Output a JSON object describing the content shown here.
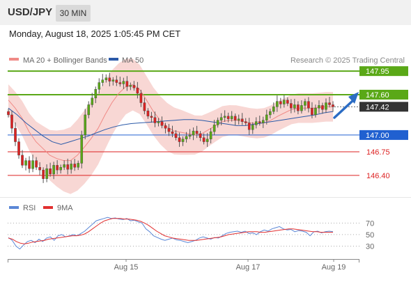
{
  "header": {
    "symbol": "USD/JPY",
    "interval": "30 MIN",
    "datetime": "Monday, August 18, 2025 1:05:45 PM CET"
  },
  "legend": {
    "ma20_label": "MA 20 + Bollinger Bands",
    "ma50_label": "MA 50",
    "ma20_color": "#f08a86",
    "ma50_color": "#2b5aa8",
    "credit": "Research © 2025 Trading Central"
  },
  "rsi_legend": {
    "rsi_label": "RSI",
    "ma9_label": "9MA",
    "rsi_color": "#5b87d6",
    "ma9_color": "#e23030"
  },
  "chart_data": [
    {
      "type": "candlestick",
      "title": "USD/JPY",
      "ylim": [
        146.15,
        148.2
      ],
      "grid": false,
      "legend_position": "top-left",
      "levels": [
        {
          "value": 147.95,
          "label": "147.95",
          "color": "#5aa817",
          "kind": "resistance"
        },
        {
          "value": 147.6,
          "label": "147.60",
          "color": "#5aa817",
          "kind": "resistance"
        },
        {
          "value": 147.42,
          "label": "147.42",
          "color": "#333333",
          "kind": "last-price"
        },
        {
          "value": 147.0,
          "label": "147.00",
          "color": "#2060d0",
          "kind": "pivot"
        },
        {
          "value": 146.75,
          "label": "146.75",
          "color": "#dd2222",
          "kind": "support"
        },
        {
          "value": 146.4,
          "label": "146.40",
          "color": "#dd2222",
          "kind": "support"
        }
      ],
      "close_series": [
        147.3,
        147.1,
        146.9,
        146.7,
        146.55,
        146.62,
        146.5,
        146.62,
        146.52,
        146.48,
        146.35,
        146.5,
        146.42,
        146.55,
        146.48,
        146.52,
        146.56,
        146.49,
        146.57,
        146.52,
        146.58,
        147.0,
        147.3,
        147.45,
        147.55,
        147.68,
        147.78,
        147.82,
        147.85,
        147.8,
        147.82,
        147.78,
        147.76,
        147.8,
        147.72,
        147.74,
        147.7,
        147.62,
        147.48,
        147.36,
        147.28,
        147.26,
        147.18,
        147.2,
        147.14,
        147.1,
        147.05,
        147.02,
        146.96,
        146.9,
        146.94,
        146.98,
        147.0,
        147.06,
        147.02,
        146.96,
        146.9,
        146.94,
        147.05,
        147.15,
        147.22,
        147.26,
        147.28,
        147.24,
        147.28,
        147.22,
        147.24,
        147.2,
        147.18,
        147.08,
        147.15,
        147.2,
        147.18,
        147.22,
        147.3,
        147.35,
        147.42,
        147.5,
        147.46,
        147.52,
        147.47,
        147.4,
        147.45,
        147.36,
        147.44,
        147.5,
        147.4,
        147.3,
        147.4,
        147.44,
        147.38,
        147.48,
        147.45,
        147.42
      ],
      "ma20": [
        147.52,
        147.4,
        147.25,
        147.05,
        146.9,
        146.8,
        146.7,
        146.65,
        146.62,
        146.62,
        146.7,
        146.82,
        146.95,
        147.1,
        147.3,
        147.48,
        147.62,
        147.72,
        147.75,
        147.68,
        147.52,
        147.35,
        147.22,
        147.12,
        147.06,
        147.04,
        147.02,
        147.0,
        147.02,
        147.08,
        147.14,
        147.2,
        147.22,
        147.22,
        147.2,
        147.18,
        147.17,
        147.18,
        147.22,
        147.28,
        147.33,
        147.38,
        147.4,
        147.4,
        147.4,
        147.41,
        147.42,
        147.42
      ],
      "ma50": [
        147.4,
        147.3,
        147.18,
        147.08,
        146.98,
        146.9,
        146.86,
        146.9,
        146.94,
        146.98,
        147.03,
        147.08,
        147.12,
        147.15,
        147.17,
        147.18,
        147.19,
        147.2,
        147.21,
        147.22,
        147.23,
        147.23,
        147.22,
        147.2,
        147.18,
        147.16,
        147.14,
        147.14,
        147.16,
        147.18,
        147.2,
        147.22,
        147.24,
        147.26,
        147.28,
        147.3,
        147.33,
        147.35
      ]
    },
    {
      "type": "line",
      "title": "RSI",
      "y_ticks": [
        70,
        50,
        30
      ],
      "ylim": [
        10,
        85
      ],
      "x_ticks": [
        "Aug 15",
        "Aug 17",
        "Aug 19"
      ],
      "series": [
        {
          "name": "RSI",
          "values": [
            45,
            40,
            30,
            25,
            32,
            38,
            40,
            36,
            42,
            38,
            44,
            46,
            40,
            48,
            50,
            46,
            48,
            50,
            48,
            52,
            56,
            62,
            68,
            74,
            76,
            78,
            80,
            78,
            79,
            77,
            76,
            78,
            74,
            75,
            72,
            70,
            60,
            55,
            48,
            45,
            42,
            40,
            42,
            44,
            41,
            40,
            38,
            36,
            38,
            40,
            44,
            46,
            44,
            42,
            45,
            44,
            48,
            52,
            54,
            55,
            56,
            54,
            56,
            52,
            53,
            50,
            55,
            58,
            56,
            60,
            62,
            64,
            60,
            58,
            59,
            55,
            57,
            56,
            54,
            48,
            55,
            56,
            53,
            55,
            56,
            55
          ]
        },
        {
          "name": "9MA",
          "values": [
            44,
            42,
            38,
            35,
            34,
            35,
            37,
            38,
            39,
            40,
            42,
            43,
            44,
            45,
            46,
            47,
            48,
            48,
            49,
            51,
            55,
            60,
            65,
            70,
            74,
            76,
            78,
            78,
            78,
            77,
            77,
            76,
            75,
            73,
            70,
            66,
            61,
            56,
            52,
            48,
            46,
            44,
            43,
            42,
            41,
            40,
            40,
            40,
            41,
            42,
            43,
            44,
            45,
            46,
            48,
            50,
            51,
            52,
            53,
            54,
            55,
            55,
            55,
            54,
            54,
            55,
            56,
            57,
            58,
            59,
            60,
            60,
            59,
            58,
            57,
            56,
            55,
            55,
            54,
            54,
            54,
            54
          ]
        }
      ]
    }
  ]
}
